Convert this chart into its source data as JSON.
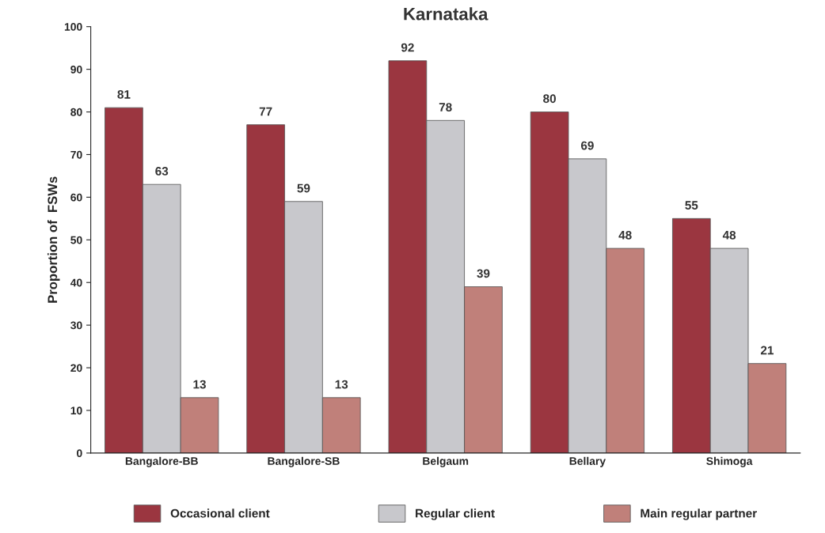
{
  "chart_data": {
    "type": "bar",
    "title": "Karnataka",
    "ylabel": "Proportion of  FSWs",
    "categories": [
      "Bangalore-BB",
      "Bangalore-SB",
      "Belgaum",
      "Bellary",
      "Shimoga"
    ],
    "series": [
      {
        "name": "Occasional client",
        "color": "#9b3640",
        "values": [
          81,
          77,
          92,
          80,
          55
        ]
      },
      {
        "name": "Regular client",
        "color": "#c8c8cc",
        "values": [
          63,
          59,
          78,
          69,
          48
        ]
      },
      {
        "name": "Main regular partner",
        "color": "#c0807a",
        "values": [
          13,
          13,
          39,
          48,
          21
        ]
      }
    ],
    "ylim": [
      0,
      100
    ],
    "yticks": [
      0,
      10,
      20,
      30,
      40,
      50,
      60,
      70,
      80,
      90,
      100
    ],
    "data_labels": true,
    "grid": false,
    "legend": "bottom"
  }
}
